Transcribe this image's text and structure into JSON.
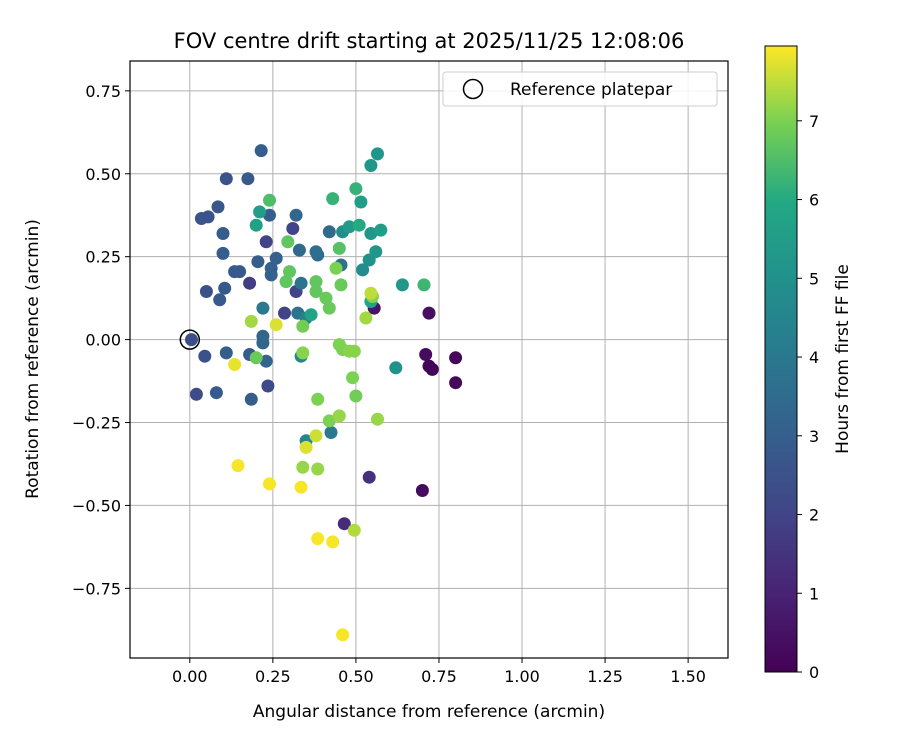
{
  "chart_data": {
    "type": "scatter",
    "title": "FOV centre drift starting at 2025/11/25 12:08:06",
    "xlabel": "Angular distance from reference (arcmin)",
    "ylabel": "Rotation from reference (arcmin)",
    "xlim": [
      -0.18,
      1.62
    ],
    "ylim": [
      -0.96,
      0.84
    ],
    "xticks": [
      0.0,
      0.25,
      0.5,
      0.75,
      1.0,
      1.25,
      1.5
    ],
    "xtick_labels": [
      "0.00",
      "0.25",
      "0.50",
      "0.75",
      "1.00",
      "1.25",
      "1.50"
    ],
    "yticks": [
      0.75,
      0.5,
      0.25,
      0.0,
      -0.25,
      -0.5,
      -0.75
    ],
    "ytick_labels": [
      "0.75",
      "0.50",
      "0.25",
      "0.00",
      "−0.25",
      "−0.50",
      "−0.75"
    ],
    "grid": true,
    "legend": {
      "placement": "top-right",
      "label": "Reference platepar"
    },
    "reference_point": {
      "x": 0.0,
      "y": 0.0
    },
    "colorbar": {
      "label": "Hours from first FF file",
      "colormap": "viridis",
      "range": [
        0,
        7.95
      ],
      "ticks": [
        0,
        1,
        2,
        3,
        4,
        5,
        6,
        7
      ],
      "tick_labels": [
        "0",
        "1",
        "2",
        "3",
        "4",
        "5",
        "6",
        "7"
      ]
    },
    "points": [
      {
        "x": 0.73,
        "y": -0.09,
        "c": 0.1
      },
      {
        "x": 0.72,
        "y": -0.08,
        "c": 0.1
      },
      {
        "x": 0.8,
        "y": -0.055,
        "c": 0.2
      },
      {
        "x": 0.8,
        "y": -0.13,
        "c": 0.2
      },
      {
        "x": 0.71,
        "y": -0.045,
        "c": 0.3
      },
      {
        "x": 0.7,
        "y": -0.455,
        "c": 0.3
      },
      {
        "x": 0.72,
        "y": 0.08,
        "c": 0.4
      },
      {
        "x": 0.555,
        "y": 0.095,
        "c": 0.6
      },
      {
        "x": 0.465,
        "y": -0.555,
        "c": 1.2
      },
      {
        "x": 0.54,
        "y": -0.415,
        "c": 1.4
      },
      {
        "x": 0.18,
        "y": 0.17,
        "c": 1.8
      },
      {
        "x": 0.23,
        "y": 0.295,
        "c": 2.0
      },
      {
        "x": 0.31,
        "y": 0.335,
        "c": 2.0
      },
      {
        "x": 0.32,
        "y": 0.145,
        "c": 2.0
      },
      {
        "x": 0.285,
        "y": 0.08,
        "c": 2.0
      },
      {
        "x": 0.235,
        "y": -0.14,
        "c": 2.2
      },
      {
        "x": 0.02,
        "y": -0.165,
        "c": 2.3
      },
      {
        "x": 0.005,
        "y": 0.0,
        "c": 2.4
      },
      {
        "x": 0.045,
        "y": -0.05,
        "c": 2.5
      },
      {
        "x": 0.05,
        "y": 0.145,
        "c": 2.5
      },
      {
        "x": 0.11,
        "y": 0.485,
        "c": 2.6
      },
      {
        "x": 0.035,
        "y": 0.365,
        "c": 2.6
      },
      {
        "x": 0.055,
        "y": 0.37,
        "c": 2.6
      },
      {
        "x": 0.085,
        "y": 0.4,
        "c": 2.7
      },
      {
        "x": 0.175,
        "y": 0.485,
        "c": 2.8
      },
      {
        "x": 0.135,
        "y": 0.205,
        "c": 2.8
      },
      {
        "x": 0.15,
        "y": 0.205,
        "c": 2.8
      },
      {
        "x": 0.105,
        "y": 0.155,
        "c": 2.8
      },
      {
        "x": 0.09,
        "y": 0.12,
        "c": 2.8
      },
      {
        "x": 0.08,
        "y": -0.16,
        "c": 2.8
      },
      {
        "x": 0.185,
        "y": -0.18,
        "c": 2.9
      },
      {
        "x": 0.18,
        "y": -0.045,
        "c": 2.9
      },
      {
        "x": 0.11,
        "y": -0.04,
        "c": 3.0
      },
      {
        "x": 0.215,
        "y": 0.57,
        "c": 3.0
      },
      {
        "x": 0.24,
        "y": 0.375,
        "c": 3.0
      },
      {
        "x": 0.1,
        "y": 0.32,
        "c": 3.0
      },
      {
        "x": 0.1,
        "y": 0.26,
        "c": 3.0
      },
      {
        "x": 0.205,
        "y": 0.235,
        "c": 3.0
      },
      {
        "x": 0.26,
        "y": 0.245,
        "c": 3.1
      },
      {
        "x": 0.245,
        "y": 0.215,
        "c": 3.1
      },
      {
        "x": 0.245,
        "y": 0.195,
        "c": 3.1
      },
      {
        "x": 0.23,
        "y": -0.065,
        "c": 3.2
      },
      {
        "x": 0.22,
        "y": -0.01,
        "c": 3.2
      },
      {
        "x": 0.22,
        "y": 0.01,
        "c": 3.3
      },
      {
        "x": 0.32,
        "y": 0.375,
        "c": 3.3
      },
      {
        "x": 0.33,
        "y": 0.27,
        "c": 3.4
      },
      {
        "x": 0.42,
        "y": 0.325,
        "c": 3.4
      },
      {
        "x": 0.385,
        "y": 0.255,
        "c": 3.5
      },
      {
        "x": 0.38,
        "y": 0.265,
        "c": 3.6
      },
      {
        "x": 0.455,
        "y": 0.225,
        "c": 3.7
      },
      {
        "x": 0.335,
        "y": 0.17,
        "c": 3.8
      },
      {
        "x": 0.325,
        "y": 0.08,
        "c": 3.8
      },
      {
        "x": 0.22,
        "y": 0.095,
        "c": 4.0
      },
      {
        "x": 0.425,
        "y": -0.28,
        "c": 4.0
      },
      {
        "x": 0.35,
        "y": 0.065,
        "c": 4.3
      },
      {
        "x": 0.335,
        "y": -0.05,
        "c": 4.6
      },
      {
        "x": 0.35,
        "y": -0.305,
        "c": 4.6
      },
      {
        "x": 0.46,
        "y": 0.325,
        "c": 4.8
      },
      {
        "x": 0.52,
        "y": 0.21,
        "c": 4.8
      },
      {
        "x": 0.54,
        "y": 0.24,
        "c": 5.0
      },
      {
        "x": 0.62,
        "y": -0.085,
        "c": 5.0
      },
      {
        "x": 0.545,
        "y": 0.525,
        "c": 5.2
      },
      {
        "x": 0.565,
        "y": 0.56,
        "c": 5.2
      },
      {
        "x": 0.545,
        "y": 0.32,
        "c": 5.2
      },
      {
        "x": 0.56,
        "y": 0.265,
        "c": 5.2
      },
      {
        "x": 0.64,
        "y": 0.165,
        "c": 5.3
      },
      {
        "x": 0.48,
        "y": 0.34,
        "c": 5.4
      },
      {
        "x": 0.515,
        "y": 0.415,
        "c": 5.5
      },
      {
        "x": 0.575,
        "y": 0.33,
        "c": 5.5
      },
      {
        "x": 0.21,
        "y": 0.385,
        "c": 5.5
      },
      {
        "x": 0.2,
        "y": 0.345,
        "c": 5.6
      },
      {
        "x": 0.545,
        "y": 0.115,
        "c": 5.7
      },
      {
        "x": 0.365,
        "y": 0.075,
        "c": 5.7
      },
      {
        "x": 0.51,
        "y": 0.345,
        "c": 6.0
      },
      {
        "x": 0.43,
        "y": 0.425,
        "c": 6.2
      },
      {
        "x": 0.5,
        "y": 0.455,
        "c": 6.2
      },
      {
        "x": 0.705,
        "y": 0.165,
        "c": 6.3
      },
      {
        "x": 0.24,
        "y": 0.42,
        "c": 6.5
      },
      {
        "x": 0.45,
        "y": 0.275,
        "c": 6.6
      },
      {
        "x": 0.29,
        "y": 0.175,
        "c": 6.7
      },
      {
        "x": 0.3,
        "y": 0.205,
        "c": 6.7
      },
      {
        "x": 0.295,
        "y": 0.295,
        "c": 6.7
      },
      {
        "x": 0.38,
        "y": 0.145,
        "c": 6.7
      },
      {
        "x": 0.38,
        "y": 0.175,
        "c": 6.7
      },
      {
        "x": 0.41,
        "y": 0.125,
        "c": 6.8
      },
      {
        "x": 0.42,
        "y": 0.095,
        "c": 6.8
      },
      {
        "x": 0.455,
        "y": 0.165,
        "c": 6.8
      },
      {
        "x": 0.2,
        "y": -0.055,
        "c": 6.8
      },
      {
        "x": 0.34,
        "y": 0.04,
        "c": 6.9
      },
      {
        "x": 0.5,
        "y": -0.17,
        "c": 6.9
      },
      {
        "x": 0.44,
        "y": 0.215,
        "c": 7.0
      },
      {
        "x": 0.385,
        "y": -0.18,
        "c": 7.0
      },
      {
        "x": 0.42,
        "y": -0.245,
        "c": 7.0
      },
      {
        "x": 0.45,
        "y": -0.015,
        "c": 7.0
      },
      {
        "x": 0.46,
        "y": -0.03,
        "c": 7.0
      },
      {
        "x": 0.49,
        "y": -0.115,
        "c": 7.0
      },
      {
        "x": 0.55,
        "y": 0.13,
        "c": 7.1
      },
      {
        "x": 0.48,
        "y": -0.035,
        "c": 7.1
      },
      {
        "x": 0.495,
        "y": -0.035,
        "c": 7.1
      },
      {
        "x": 0.34,
        "y": -0.04,
        "c": 7.1
      },
      {
        "x": 0.34,
        "y": -0.385,
        "c": 7.2
      },
      {
        "x": 0.385,
        "y": -0.39,
        "c": 7.2
      },
      {
        "x": 0.45,
        "y": -0.23,
        "c": 7.2
      },
      {
        "x": 0.565,
        "y": -0.24,
        "c": 7.2
      },
      {
        "x": 0.53,
        "y": 0.065,
        "c": 7.3
      },
      {
        "x": 0.185,
        "y": 0.055,
        "c": 7.3
      },
      {
        "x": 0.495,
        "y": -0.575,
        "c": 7.4
      },
      {
        "x": 0.545,
        "y": 0.14,
        "c": 7.5
      },
      {
        "x": 0.38,
        "y": -0.29,
        "c": 7.6
      },
      {
        "x": 0.35,
        "y": -0.325,
        "c": 7.7
      },
      {
        "x": 0.26,
        "y": 0.045,
        "c": 7.7
      },
      {
        "x": 0.135,
        "y": -0.075,
        "c": 7.8
      },
      {
        "x": 0.145,
        "y": -0.38,
        "c": 7.9
      },
      {
        "x": 0.24,
        "y": -0.435,
        "c": 7.9
      },
      {
        "x": 0.335,
        "y": -0.445,
        "c": 7.9
      },
      {
        "x": 0.385,
        "y": -0.6,
        "c": 7.9
      },
      {
        "x": 0.43,
        "y": -0.61,
        "c": 7.9
      },
      {
        "x": 0.46,
        "y": -0.89,
        "c": 7.9
      }
    ]
  }
}
